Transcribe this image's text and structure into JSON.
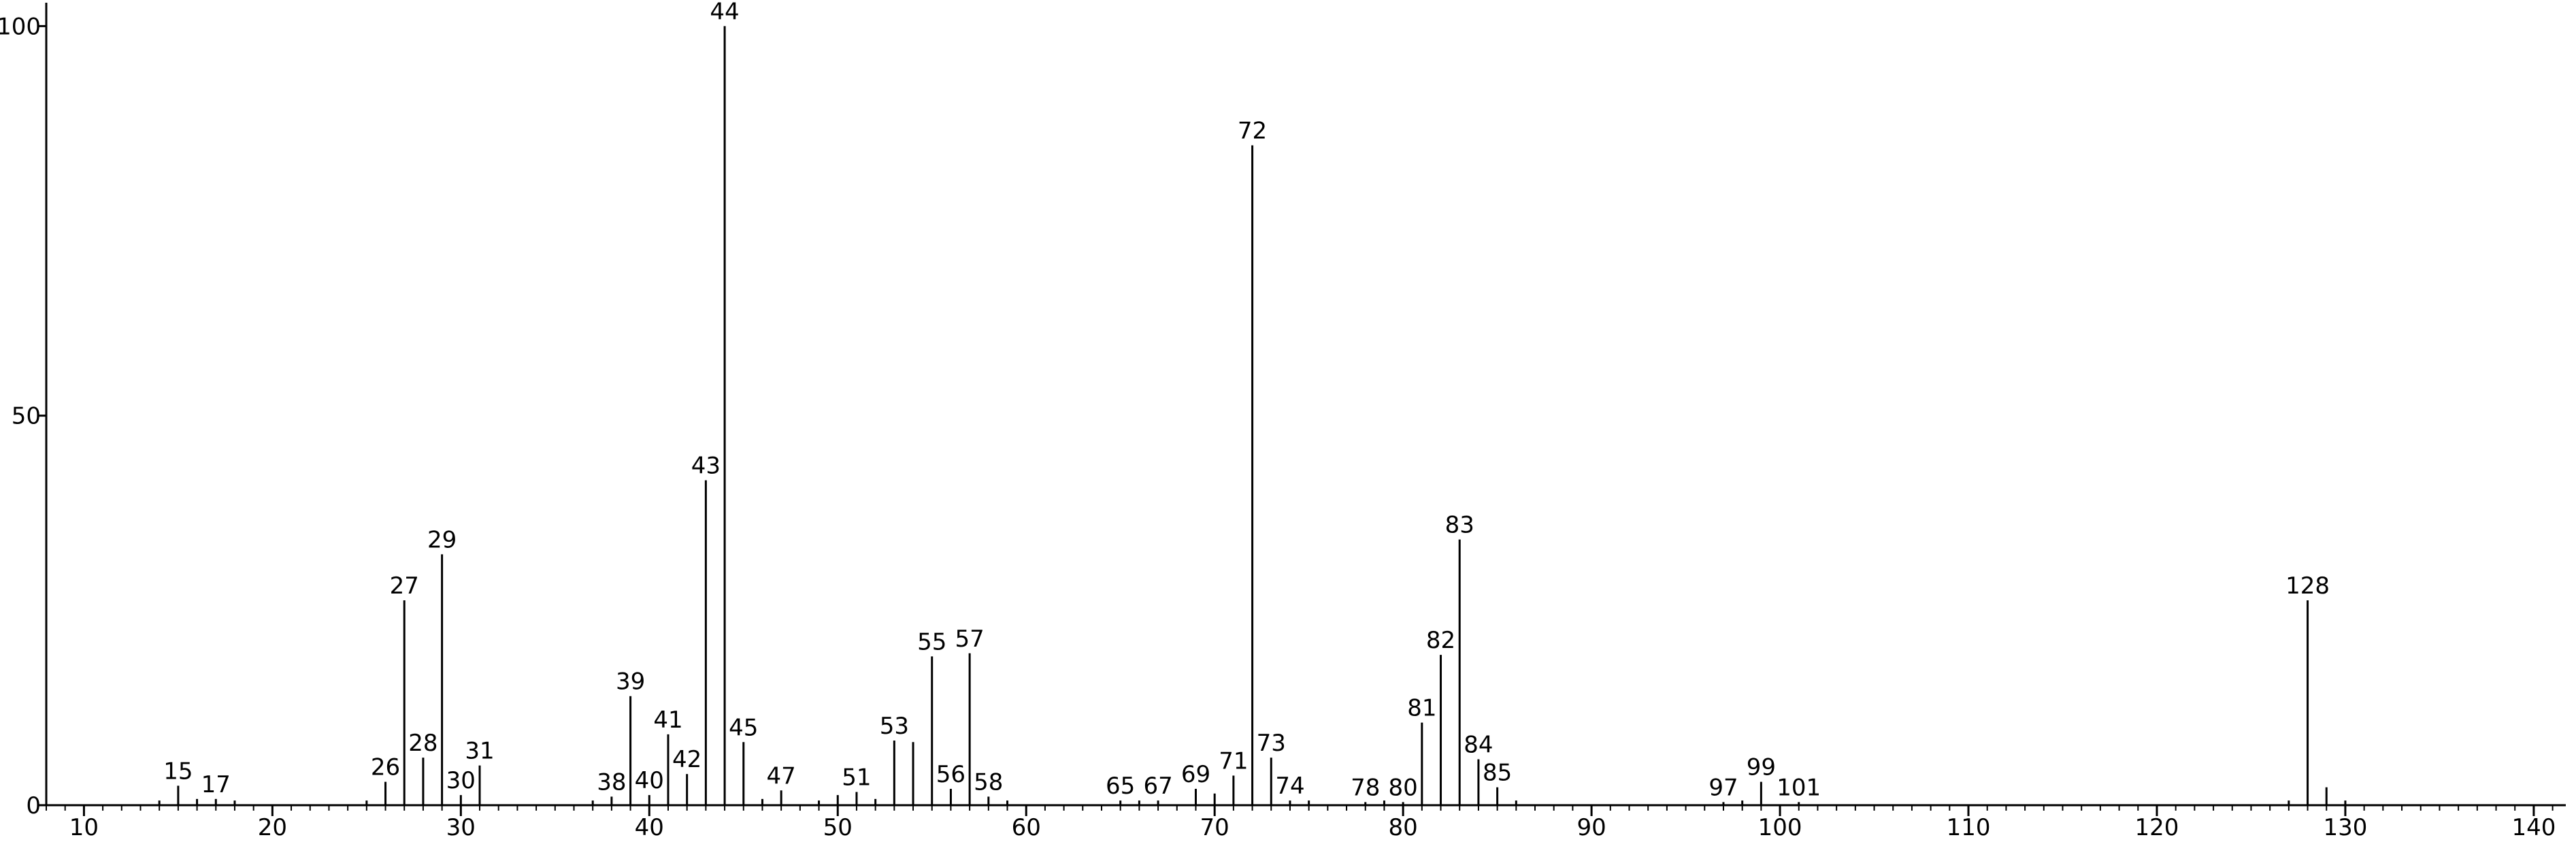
{
  "chart_data": {
    "type": "stem",
    "x": [
      14,
      15,
      16,
      17,
      18,
      25,
      26,
      27,
      28,
      29,
      30,
      31,
      37,
      38,
      39,
      40,
      41,
      42,
      43,
      44,
      45,
      46,
      47,
      49,
      50,
      51,
      52,
      53,
      54,
      55,
      56,
      57,
      58,
      59,
      65,
      66,
      67,
      69,
      70,
      71,
      72,
      73,
      74,
      75,
      78,
      79,
      80,
      81,
      82,
      83,
      84,
      85,
      86,
      97,
      98,
      99,
      101,
      127,
      128,
      129,
      130
    ],
    "values": [
      0.6,
      2.5,
      0.8,
      0.8,
      0.6,
      0.6,
      3,
      26.3,
      6.1,
      32.2,
      1.3,
      5.1,
      0.6,
      1.1,
      14,
      1.3,
      9.1,
      4,
      41.7,
      100,
      8.1,
      0.8,
      1.9,
      0.6,
      1.3,
      1.7,
      0.8,
      8.3,
      8.1,
      19.1,
      2.1,
      19.5,
      1.1,
      0.6,
      0.6,
      0.6,
      0.6,
      2.1,
      1.5,
      3.8,
      84.7,
      6.1,
      0.6,
      0.6,
      0.4,
      0.6,
      0.4,
      10.6,
      19.3,
      34.1,
      5.9,
      2.3,
      0.6,
      0.4,
      0.6,
      3,
      0.4,
      0.6,
      26.3,
      2.3,
      0.6
    ],
    "peak_labels": [
      15,
      17,
      26,
      27,
      28,
      29,
      30,
      31,
      38,
      39,
      40,
      41,
      42,
      43,
      44,
      45,
      47,
      51,
      53,
      55,
      56,
      57,
      58,
      65,
      67,
      69,
      71,
      72,
      73,
      74,
      78,
      80,
      81,
      82,
      83,
      84,
      85,
      97,
      99,
      101,
      128
    ],
    "color": "#000000",
    "xlim": [
      8,
      141.7
    ],
    "xticks": [
      10,
      20,
      30,
      40,
      50,
      60,
      70,
      80,
      90,
      100,
      110,
      120,
      130,
      140
    ],
    "ylim": [
      0,
      103
    ],
    "yticks": [
      0,
      50,
      100
    ]
  }
}
